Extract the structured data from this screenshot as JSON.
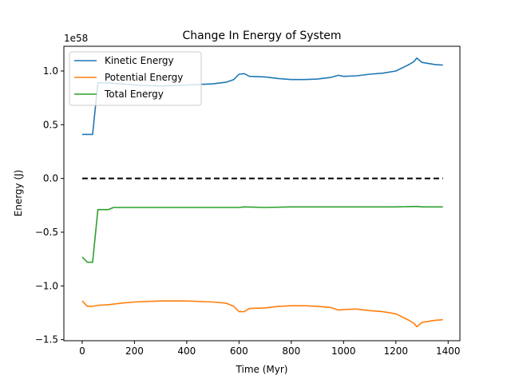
{
  "chart_data": {
    "type": "line",
    "title": "Change In Energy of System",
    "xlabel": "Time (Myr)",
    "ylabel": "Energy (J)",
    "y_offset_label": "1e58",
    "xlim": [
      -70,
      1445
    ],
    "ylim": [
      -1.51,
      1.23
    ],
    "xticks": [
      0,
      200,
      400,
      600,
      800,
      1000,
      1200,
      1400
    ],
    "yticks": [
      -1.5,
      -1.0,
      -0.5,
      0.0,
      0.5,
      1.0
    ],
    "ytick_labels": [
      "−1.5",
      "−1.0",
      "−0.5",
      "0.0",
      "0.5",
      "1.0"
    ],
    "grid": false,
    "legend_position": "top-left",
    "colors": {
      "kinetic": "#1f77b4",
      "potential": "#ff7f0e",
      "total": "#2ca02c",
      "zero_line": "#000000"
    },
    "series": [
      {
        "name": "Kinetic Energy",
        "color": "#1f77b4",
        "x": [
          0,
          20,
          40,
          60,
          100,
          150,
          200,
          300,
          400,
          500,
          550,
          580,
          600,
          620,
          640,
          700,
          750,
          800,
          850,
          900,
          950,
          980,
          1000,
          1050,
          1100,
          1150,
          1200,
          1250,
          1270,
          1280,
          1300,
          1350,
          1380
        ],
        "y": [
          0.41,
          0.41,
          0.41,
          0.89,
          0.89,
          0.88,
          0.87,
          0.86,
          0.87,
          0.88,
          0.895,
          0.92,
          0.97,
          0.975,
          0.95,
          0.945,
          0.93,
          0.92,
          0.92,
          0.925,
          0.94,
          0.96,
          0.95,
          0.955,
          0.97,
          0.98,
          1.0,
          1.06,
          1.09,
          1.12,
          1.08,
          1.06,
          1.055
        ]
      },
      {
        "name": "Potential Energy",
        "color": "#ff7f0e",
        "x": [
          0,
          20,
          40,
          60,
          100,
          150,
          200,
          300,
          400,
          500,
          550,
          580,
          600,
          620,
          640,
          700,
          750,
          800,
          850,
          900,
          950,
          980,
          1000,
          1050,
          1100,
          1150,
          1200,
          1250,
          1270,
          1280,
          1300,
          1350,
          1380
        ],
        "y": [
          -1.14,
          -1.19,
          -1.19,
          -1.18,
          -1.175,
          -1.16,
          -1.15,
          -1.14,
          -1.14,
          -1.15,
          -1.16,
          -1.19,
          -1.24,
          -1.24,
          -1.21,
          -1.205,
          -1.19,
          -1.185,
          -1.185,
          -1.19,
          -1.2,
          -1.225,
          -1.22,
          -1.215,
          -1.23,
          -1.24,
          -1.26,
          -1.32,
          -1.35,
          -1.38,
          -1.34,
          -1.32,
          -1.315
        ]
      },
      {
        "name": "Total Energy",
        "color": "#2ca02c",
        "x": [
          0,
          20,
          40,
          60,
          100,
          120,
          200,
          300,
          400,
          500,
          600,
          620,
          700,
          800,
          900,
          1000,
          1100,
          1200,
          1280,
          1300,
          1380
        ],
        "y": [
          -0.73,
          -0.78,
          -0.78,
          -0.29,
          -0.29,
          -0.27,
          -0.27,
          -0.27,
          -0.27,
          -0.27,
          -0.27,
          -0.265,
          -0.27,
          -0.265,
          -0.265,
          -0.265,
          -0.265,
          -0.265,
          -0.26,
          -0.265,
          -0.265
        ]
      }
    ],
    "reference_line": {
      "y": 0,
      "x_range": [
        0,
        1380
      ],
      "style": "dashed",
      "color": "#000000"
    }
  }
}
